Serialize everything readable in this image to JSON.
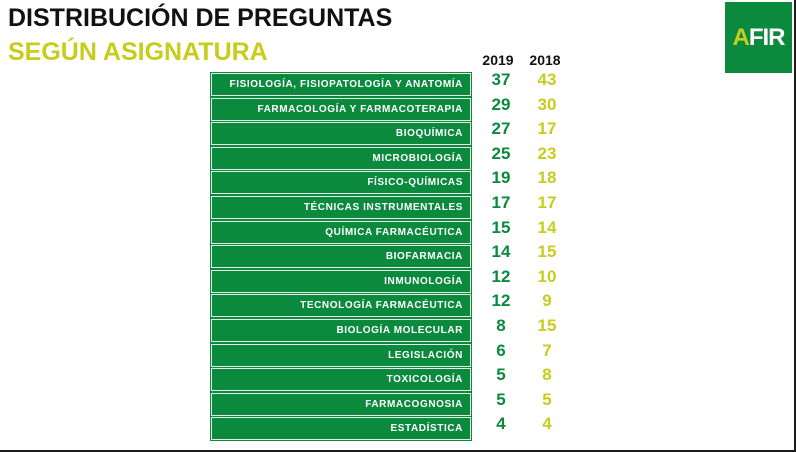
{
  "title": "DISTRIBUCIÓN DE PREGUNTAS",
  "subtitle": "SEGÚN ASIGNATURA",
  "logo": {
    "prefix": "A",
    "suffix": "FIR"
  },
  "colors": {
    "primary_green": "#0b8a3e",
    "accent_yellow": "#c8cc1c",
    "text_dark": "#111111"
  },
  "chart_data": {
    "type": "table",
    "title": "DISTRIBUCIÓN DE PREGUNTAS",
    "subtitle": "SEGÚN ASIGNATURA",
    "columns": [
      "2019",
      "2018"
    ],
    "categories": [
      "FISIOLOGÍA, FISIOPATOLOGÍA Y ANATOMÍA",
      "FARMACOLOGÍA Y FARMACOTERAPIA",
      "BIOQUÍMICA",
      "MICROBIOLOGÍA",
      "FÍSICO-QUÍMICAS",
      "TÉCNICAS INSTRUMENTALES",
      "QUÍMICA FARMACÉUTICA",
      "BIOFARMACIA",
      "INMUNOLOGÍA",
      "TECNOLOGÍA FARMACÉUTICA",
      "BIOLOGÍA MOLECULAR",
      "LEGISLACIÓN",
      "TOXICOLOGÍA",
      "FARMACOGNOSIA",
      "ESTADÍSTICA"
    ],
    "series": [
      {
        "name": "2019",
        "values": [
          37,
          29,
          27,
          25,
          19,
          17,
          15,
          14,
          12,
          12,
          8,
          6,
          5,
          5,
          4
        ]
      },
      {
        "name": "2018",
        "values": [
          43,
          30,
          17,
          23,
          18,
          17,
          14,
          15,
          10,
          9,
          15,
          7,
          8,
          5,
          4
        ]
      }
    ]
  }
}
